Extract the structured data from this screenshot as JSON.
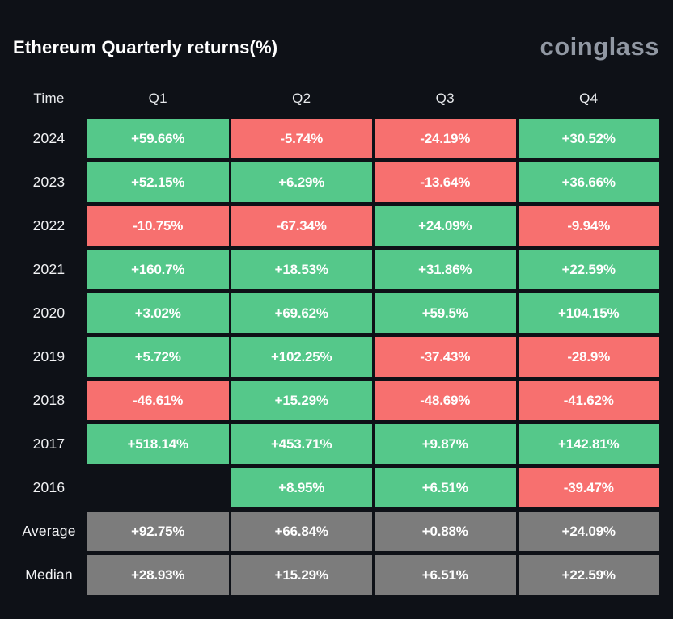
{
  "header": {
    "title": "Ethereum Quarterly returns(%)",
    "logo_text": "coinglass"
  },
  "colors": {
    "positive": "#55c88a",
    "negative": "#f7706f",
    "stat": "#7c7c7c",
    "background": "#0e1117",
    "logo_gray": "#9198a3"
  },
  "table": {
    "columns": [
      "Time",
      "Q1",
      "Q2",
      "Q3",
      "Q4"
    ],
    "rows": [
      {
        "label": "2024",
        "cells": [
          {
            "text": "+59.66%",
            "type": "pos"
          },
          {
            "text": "-5.74%",
            "type": "neg"
          },
          {
            "text": "-24.19%",
            "type": "neg"
          },
          {
            "text": "+30.52%",
            "type": "pos"
          }
        ]
      },
      {
        "label": "2023",
        "cells": [
          {
            "text": "+52.15%",
            "type": "pos"
          },
          {
            "text": "+6.29%",
            "type": "pos"
          },
          {
            "text": "-13.64%",
            "type": "neg"
          },
          {
            "text": "+36.66%",
            "type": "pos"
          }
        ]
      },
      {
        "label": "2022",
        "cells": [
          {
            "text": "-10.75%",
            "type": "neg"
          },
          {
            "text": "-67.34%",
            "type": "neg"
          },
          {
            "text": "+24.09%",
            "type": "pos"
          },
          {
            "text": "-9.94%",
            "type": "neg"
          }
        ]
      },
      {
        "label": "2021",
        "cells": [
          {
            "text": "+160.7%",
            "type": "pos"
          },
          {
            "text": "+18.53%",
            "type": "pos"
          },
          {
            "text": "+31.86%",
            "type": "pos"
          },
          {
            "text": "+22.59%",
            "type": "pos"
          }
        ]
      },
      {
        "label": "2020",
        "cells": [
          {
            "text": "+3.02%",
            "type": "pos"
          },
          {
            "text": "+69.62%",
            "type": "pos"
          },
          {
            "text": "+59.5%",
            "type": "pos"
          },
          {
            "text": "+104.15%",
            "type": "pos"
          }
        ]
      },
      {
        "label": "2019",
        "cells": [
          {
            "text": "+5.72%",
            "type": "pos"
          },
          {
            "text": "+102.25%",
            "type": "pos"
          },
          {
            "text": "-37.43%",
            "type": "neg"
          },
          {
            "text": "-28.9%",
            "type": "neg"
          }
        ]
      },
      {
        "label": "2018",
        "cells": [
          {
            "text": "-46.61%",
            "type": "neg"
          },
          {
            "text": "+15.29%",
            "type": "pos"
          },
          {
            "text": "-48.69%",
            "type": "neg"
          },
          {
            "text": "-41.62%",
            "type": "neg"
          }
        ]
      },
      {
        "label": "2017",
        "cells": [
          {
            "text": "+518.14%",
            "type": "pos"
          },
          {
            "text": "+453.71%",
            "type": "pos"
          },
          {
            "text": "+9.87%",
            "type": "pos"
          },
          {
            "text": "+142.81%",
            "type": "pos"
          }
        ]
      },
      {
        "label": "2016",
        "cells": [
          {
            "text": "",
            "type": "empty"
          },
          {
            "text": "+8.95%",
            "type": "pos"
          },
          {
            "text": "+6.51%",
            "type": "pos"
          },
          {
            "text": "-39.47%",
            "type": "neg"
          }
        ]
      },
      {
        "label": "Average",
        "cells": [
          {
            "text": "+92.75%",
            "type": "stat"
          },
          {
            "text": "+66.84%",
            "type": "stat"
          },
          {
            "text": "+0.88%",
            "type": "stat"
          },
          {
            "text": "+24.09%",
            "type": "stat"
          }
        ]
      },
      {
        "label": "Median",
        "cells": [
          {
            "text": "+28.93%",
            "type": "stat"
          },
          {
            "text": "+15.29%",
            "type": "stat"
          },
          {
            "text": "+6.51%",
            "type": "stat"
          },
          {
            "text": "+22.59%",
            "type": "stat"
          }
        ]
      }
    ]
  },
  "chart_data": {
    "type": "table",
    "title": "Ethereum Quarterly returns(%)",
    "columns": [
      "Q1",
      "Q2",
      "Q3",
      "Q4"
    ],
    "rows": [
      "2024",
      "2023",
      "2022",
      "2021",
      "2020",
      "2019",
      "2018",
      "2017",
      "2016",
      "Average",
      "Median"
    ],
    "values_percent": [
      [
        59.66,
        -5.74,
        -24.19,
        30.52
      ],
      [
        52.15,
        6.29,
        -13.64,
        36.66
      ],
      [
        -10.75,
        -67.34,
        24.09,
        -9.94
      ],
      [
        160.7,
        18.53,
        31.86,
        22.59
      ],
      [
        3.02,
        69.62,
        59.5,
        104.15
      ],
      [
        5.72,
        102.25,
        -37.43,
        -28.9
      ],
      [
        -46.61,
        15.29,
        -48.69,
        -41.62
      ],
      [
        518.14,
        453.71,
        9.87,
        142.81
      ],
      [
        null,
        8.95,
        6.51,
        -39.47
      ],
      [
        92.75,
        66.84,
        0.88,
        24.09
      ],
      [
        28.93,
        15.29,
        6.51,
        22.59
      ]
    ],
    "legend": "green = positive quarter, red = negative quarter, gray = aggregate stat row",
    "source_brand": "coinglass"
  }
}
